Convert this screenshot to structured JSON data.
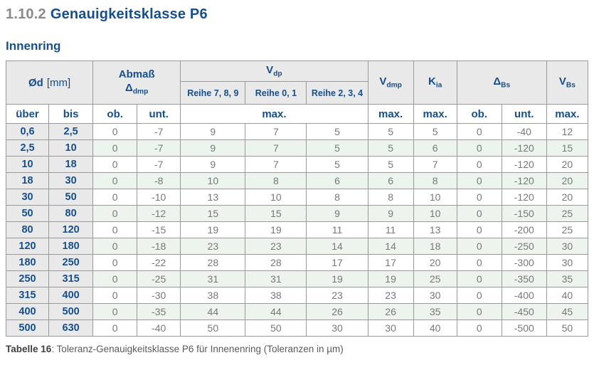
{
  "page": {
    "section_number": "1.10.2",
    "section_title": "Genauigkeitsklasse P6",
    "subtitle": "Innenring"
  },
  "table": {
    "header": {
      "od_symbol": "Ød",
      "od_unit": "[mm]",
      "abmass_label": "Abmaß",
      "abmass_symbol": "Δ",
      "abmass_sub": "dmp",
      "vdp_main": "V",
      "vdp_sub": "dp",
      "reihe_789": "Reihe 7, 8, 9",
      "reihe_01": "Reihe 0, 1",
      "reihe_234": "Reihe 2, 3, 4",
      "vdmp_main": "V",
      "vdmp_sub": "dmp",
      "kia_main": "K",
      "kia_sub": "ia",
      "dbs_symbol": "Δ",
      "dbs_sub": "Bs",
      "vbs_main": "V",
      "vbs_sub": "Bs",
      "sub_ueber": "über",
      "sub_bis": "bis",
      "sub_ob": "ob.",
      "sub_unt": "unt.",
      "sub_max_vdp": "max.",
      "sub_max_vdmp": "max.",
      "sub_max_kia": "max.",
      "sub_ob_dbs": "ob.",
      "sub_unt_dbs": "unt.",
      "sub_max_vbs": "max."
    },
    "rows": [
      [
        "0,6",
        "2,5",
        "0",
        "-7",
        "9",
        "7",
        "5",
        "5",
        "5",
        "0",
        "-40",
        "12"
      ],
      [
        "2,5",
        "10",
        "0",
        "-7",
        "9",
        "7",
        "5",
        "5",
        "6",
        "0",
        "-120",
        "15"
      ],
      [
        "10",
        "18",
        "0",
        "-7",
        "9",
        "7",
        "5",
        "5",
        "7",
        "0",
        "-120",
        "20"
      ],
      [
        "18",
        "30",
        "0",
        "-8",
        "10",
        "8",
        "6",
        "6",
        "8",
        "0",
        "-120",
        "20"
      ],
      [
        "30",
        "50",
        "0",
        "-10",
        "13",
        "10",
        "8",
        "8",
        "10",
        "0",
        "-120",
        "20"
      ],
      [
        "50",
        "80",
        "0",
        "-12",
        "15",
        "15",
        "9",
        "9",
        "10",
        "0",
        "-150",
        "25"
      ],
      [
        "80",
        "120",
        "0",
        "-15",
        "19",
        "19",
        "11",
        "11",
        "13",
        "0",
        "-200",
        "25"
      ],
      [
        "120",
        "180",
        "0",
        "-18",
        "23",
        "23",
        "14",
        "14",
        "18",
        "0",
        "-250",
        "30"
      ],
      [
        "180",
        "250",
        "0",
        "-22",
        "28",
        "28",
        "17",
        "17",
        "20",
        "0",
        "-300",
        "30"
      ],
      [
        "250",
        "315",
        "0",
        "-25",
        "31",
        "31",
        "19",
        "19",
        "25",
        "0",
        "-350",
        "35"
      ],
      [
        "315",
        "400",
        "0",
        "-30",
        "38",
        "38",
        "23",
        "23",
        "30",
        "0",
        "-400",
        "40"
      ],
      [
        "400",
        "500",
        "0",
        "-35",
        "44",
        "44",
        "26",
        "26",
        "35",
        "0",
        "-450",
        "45"
      ],
      [
        "500",
        "630",
        "0",
        "-40",
        "50",
        "50",
        "30",
        "30",
        "40",
        "0",
        "-500",
        "50"
      ]
    ],
    "caption_bold": "Tabelle 16",
    "caption_rest": ": Toleranz-Genauigkeitsklasse P6 für Innenenring (Toleranzen in µm)"
  },
  "colors": {
    "heading_blue": "#164f8c",
    "section_number_gray": "#8a8a8a",
    "header_bg": "#e9e9e9",
    "row_alt_green": "#edf4ed",
    "border_gray": "#999999",
    "data_text_gray": "#787878"
  }
}
